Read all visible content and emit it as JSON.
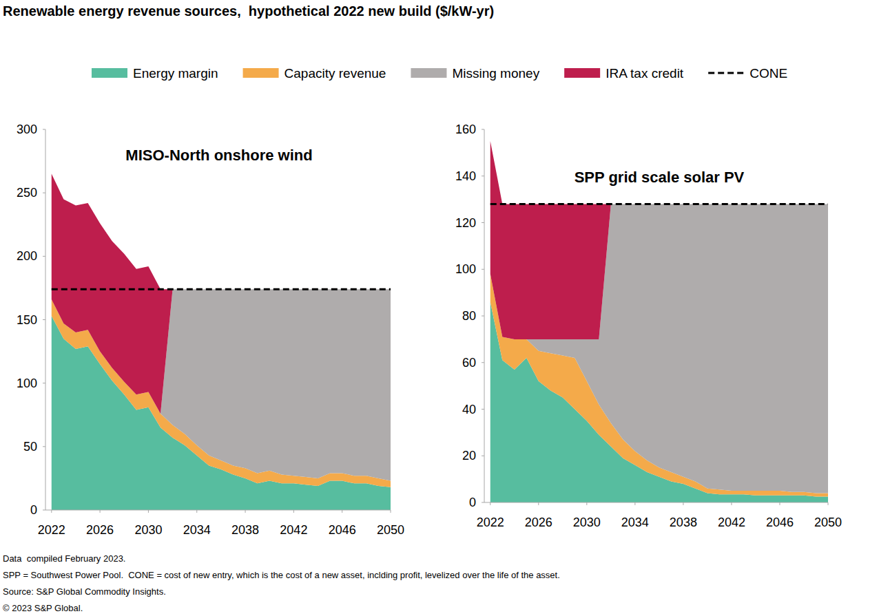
{
  "title": "Renewable energy revenue sources,  hypothetical 2022 new build ($/kW-yr)",
  "notes": [
    "Data  compiled February 2023.",
    "SPP = Southwest Power Pool.  CONE = cost of new entry, which is the cost of a new asset, inclding profit, levelized over the life of the asset.",
    "Source: S&P Global Commodity Insights.",
    "© 2023 S&P Global."
  ],
  "chart_data": [
    {
      "type": "area",
      "title": "MISO-North onshore wind",
      "stacked": true,
      "grid": false,
      "legend": "top",
      "x": [
        2022,
        2023,
        2024,
        2025,
        2026,
        2027,
        2028,
        2029,
        2030,
        2031,
        2032,
        2033,
        2034,
        2035,
        2036,
        2037,
        2038,
        2039,
        2040,
        2041,
        2042,
        2043,
        2044,
        2045,
        2046,
        2047,
        2048,
        2049,
        2050
      ],
      "xlim": [
        2021.5,
        2050
      ],
      "xticks": [
        2022,
        2026,
        2030,
        2034,
        2038,
        2042,
        2046,
        2050
      ],
      "ylim": [
        0,
        300
      ],
      "yticks": [
        0,
        50,
        100,
        150,
        200,
        250,
        300
      ],
      "series": [
        {
          "name": "Energy margin",
          "color": "#57bd9f",
          "values": [
            153,
            135,
            127,
            129,
            115,
            102,
            91,
            79,
            81,
            65,
            57,
            51,
            43,
            35,
            32,
            28,
            25,
            21,
            23,
            21,
            21,
            20,
            19,
            23,
            23,
            21,
            21,
            19,
            18
          ]
        },
        {
          "name": "Capacity revenue",
          "color": "#f4aa4a",
          "values": [
            13,
            12,
            13,
            13,
            10,
            10,
            10,
            12,
            12,
            11,
            10,
            9,
            8,
            8,
            7,
            7,
            8,
            8,
            8,
            7,
            6,
            6,
            6,
            6,
            6,
            6,
            6,
            6,
            5
          ]
        },
        {
          "name": "Missing money",
          "color": "#afacac",
          "values": [
            0,
            0,
            0,
            0,
            0,
            0,
            0,
            0,
            0,
            0,
            107,
            114,
            123,
            131,
            135,
            139,
            141,
            145,
            143,
            146,
            147,
            148,
            149,
            145,
            145,
            147,
            147,
            149,
            151
          ]
        },
        {
          "name": "IRA tax credit",
          "color": "#be1e4d",
          "values": [
            99,
            98,
            100,
            100,
            101,
            100,
            101,
            99,
            99,
            98,
            0,
            0,
            0,
            0,
            0,
            0,
            0,
            0,
            0,
            0,
            0,
            0,
            0,
            0,
            0,
            0,
            0,
            0,
            0
          ]
        },
        {
          "name": "CONE",
          "color": "#000000",
          "type": "line",
          "line_style": "dashed",
          "values": [
            174,
            174,
            174,
            174,
            174,
            174,
            174,
            174,
            174,
            174,
            174,
            174,
            174,
            174,
            174,
            174,
            174,
            174,
            174,
            174,
            174,
            174,
            174,
            174,
            174,
            174,
            174,
            174,
            174
          ]
        }
      ]
    },
    {
      "type": "area",
      "title": "SPP grid scale solar PV",
      "stacked": true,
      "grid": false,
      "x": [
        2022,
        2023,
        2024,
        2025,
        2026,
        2027,
        2028,
        2029,
        2030,
        2031,
        2032,
        2033,
        2034,
        2035,
        2036,
        2037,
        2038,
        2039,
        2040,
        2041,
        2042,
        2043,
        2044,
        2045,
        2046,
        2047,
        2048,
        2049,
        2050
      ],
      "xlim": [
        2021.5,
        2050
      ],
      "xticks": [
        2022,
        2026,
        2030,
        2034,
        2038,
        2042,
        2046,
        2050
      ],
      "ylim": [
        0,
        160
      ],
      "yticks": [
        0,
        20,
        40,
        60,
        80,
        100,
        120,
        140,
        160
      ],
      "series": [
        {
          "name": "Energy margin",
          "color": "#57bd9f",
          "values": [
            86,
            61,
            57,
            62,
            52,
            48,
            45,
            40,
            35,
            29,
            24,
            19,
            16,
            13,
            11,
            9,
            8,
            6,
            4,
            3.5,
            3.5,
            3.5,
            3,
            3,
            3,
            3,
            3,
            2.5,
            2.5
          ]
        },
        {
          "name": "Capacity revenue",
          "color": "#f4aa4a",
          "values": [
            12,
            10,
            13,
            8,
            13,
            16,
            18,
            22,
            17,
            13,
            10,
            8,
            6,
            5,
            4,
            4,
            3,
            3,
            2,
            2,
            1.5,
            1.5,
            2,
            2,
            2,
            1.5,
            1.5,
            1.5,
            1.5
          ]
        },
        {
          "name": "Missing money",
          "color": "#afacac",
          "values": [
            0,
            0,
            0,
            0,
            5,
            6,
            7,
            8,
            18,
            28,
            94,
            101,
            106,
            110,
            113,
            115,
            117,
            119,
            122,
            122.5,
            123,
            123,
            123,
            123,
            123,
            123.5,
            123.5,
            124,
            124
          ]
        },
        {
          "name": "IRA tax credit",
          "color": "#be1e4d",
          "values": [
            57,
            57,
            58,
            58,
            58,
            58,
            58,
            58,
            58,
            58,
            0,
            0,
            0,
            0,
            0,
            0,
            0,
            0,
            0,
            0,
            0,
            0,
            0,
            0,
            0,
            0,
            0,
            0,
            0
          ]
        },
        {
          "name": "CONE",
          "color": "#000000",
          "type": "line",
          "line_style": "dashed",
          "values": [
            128,
            128,
            128,
            128,
            128,
            128,
            128,
            128,
            128,
            128,
            128,
            128,
            128,
            128,
            128,
            128,
            128,
            128,
            128,
            128,
            128,
            128,
            128,
            128,
            128,
            128,
            128,
            128,
            128
          ]
        }
      ]
    }
  ]
}
